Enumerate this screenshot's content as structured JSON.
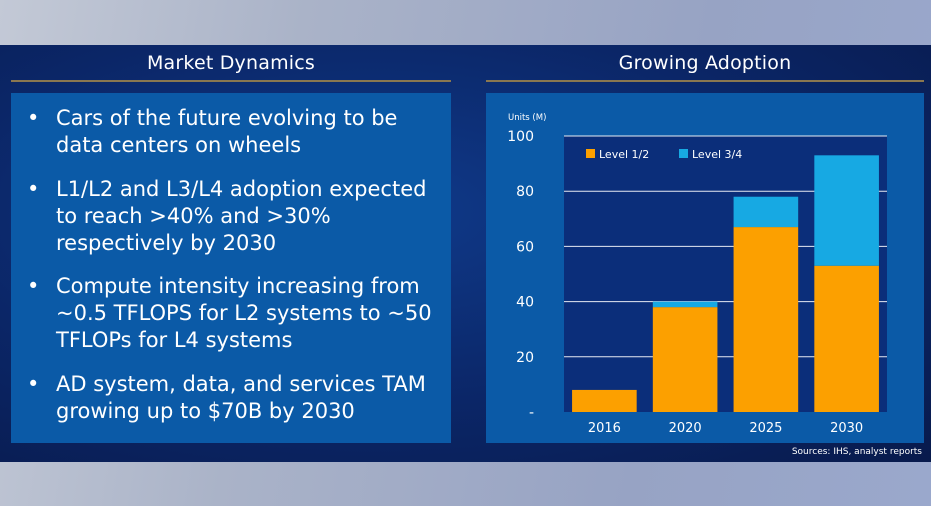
{
  "left": {
    "title": "Market Dynamics",
    "bullets": [
      "Cars of the future evolving to be data centers on wheels",
      "L1/L2 and L3/L4 adoption expected to reach >40% and >30% respectively by 2030",
      "Compute intensity increasing from ~0.5 TFLOPS for L2 systems to ~50 TFLOPs for L4 systems",
      "AD system, data, and services TAM growing up to $70B by 2030"
    ]
  },
  "right": {
    "title": "Growing Adoption",
    "sources": "Sources:  IHS, analyst reports"
  },
  "chart_data": {
    "type": "bar",
    "stacked": true,
    "title": "",
    "ylabel": "Units (M)",
    "xlabel": "",
    "categories": [
      "2016",
      "2020",
      "2025",
      "2030"
    ],
    "yticks": [
      "-",
      "20",
      "40",
      "60",
      "80",
      "100"
    ],
    "ylim": [
      0,
      100
    ],
    "grid": true,
    "legend_position": "top",
    "series": [
      {
        "name": "Level 1/2",
        "color": "#fca000",
        "values": [
          8,
          38,
          67,
          53
        ]
      },
      {
        "name": "Level 3/4",
        "color": "#17a9e3",
        "values": [
          0,
          2,
          11,
          40
        ]
      }
    ]
  }
}
